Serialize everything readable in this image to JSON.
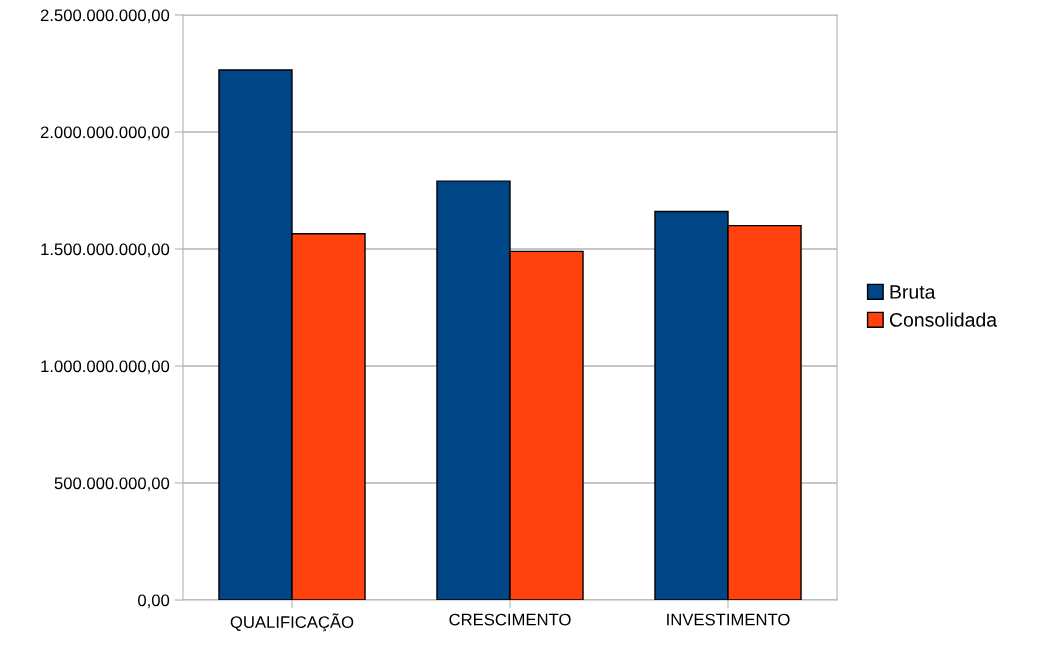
{
  "chart_data": {
    "type": "bar",
    "categories": [
      "QUALIFICAÇÃO",
      "CRESCIMENTO",
      "INVESTIMENTO"
    ],
    "series": [
      {
        "name": "Bruta",
        "color": "#004586",
        "values": [
          2265000000,
          1790000000,
          1660000000
        ]
      },
      {
        "name": "Consolidada",
        "color": "#ff420e",
        "values": [
          1565000000,
          1490000000,
          1600000000
        ]
      }
    ],
    "ylim": [
      0,
      2500000000
    ],
    "yticks": [
      {
        "value": 0,
        "label": "0,00"
      },
      {
        "value": 500000000,
        "label": "500.000.000,00"
      },
      {
        "value": 1000000000,
        "label": "1.000.000.000,00"
      },
      {
        "value": 1500000000,
        "label": "1.500.000.000,00"
      },
      {
        "value": 2000000000,
        "label": "2.000.000.000,00"
      },
      {
        "value": 2500000000,
        "label": "2.500.000.000,00"
      }
    ],
    "grid": "y",
    "legend": "right"
  }
}
